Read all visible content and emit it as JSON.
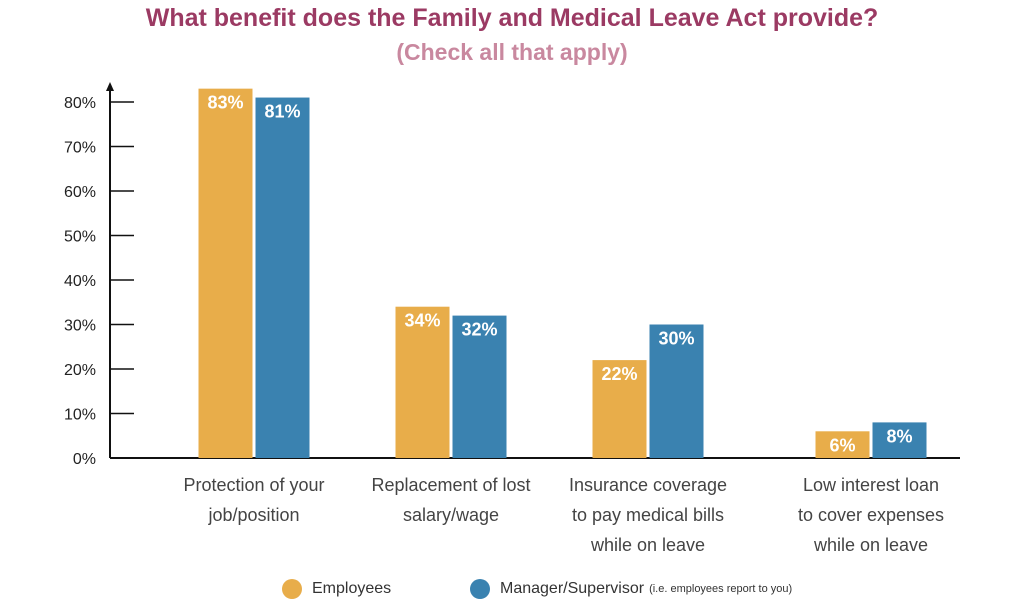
{
  "title": "What benefit does the Family and Medical Leave Act provide?",
  "subtitle": "(Check all that apply)",
  "chart_data": {
    "type": "bar",
    "categories": [
      [
        "Protection of your",
        "job/position"
      ],
      [
        "Replacement of lost",
        "salary/wage"
      ],
      [
        "Insurance coverage",
        "to pay medical bills",
        "while on leave"
      ],
      [
        "Low interest loan",
        "to cover expenses",
        "while on leave"
      ]
    ],
    "series": [
      {
        "name": "Employees",
        "values": [
          83,
          34,
          22,
          6
        ],
        "labels": [
          "83%",
          "34%",
          "22%",
          "6%"
        ],
        "color": "#e8ad4a"
      },
      {
        "name": "Manager/Supervisor",
        "values": [
          81,
          32,
          30,
          8
        ],
        "labels": [
          "81%",
          "32%",
          "30%",
          "8%"
        ],
        "color": "#3a82b0"
      }
    ],
    "yticks": [
      "0%",
      "10%",
      "20%",
      "30%",
      "40%",
      "50%",
      "60%",
      "70%",
      "80%"
    ],
    "ylim": [
      0,
      80
    ],
    "grid": false,
    "legend_position": "bottom"
  },
  "legend": {
    "employees_label": "Employees",
    "manager_label": "Manager/Supervisor",
    "manager_note": "(i.e. employees report to you)"
  }
}
